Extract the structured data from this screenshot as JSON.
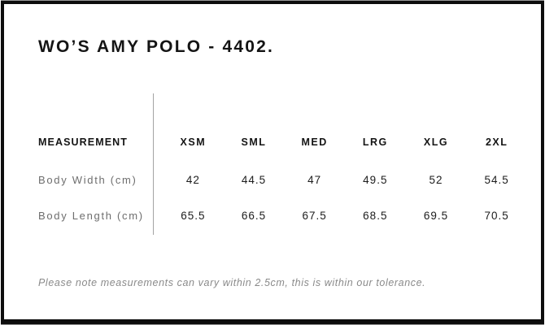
{
  "page": {
    "title": "WO’S AMY POLO - 4402.",
    "footer_note": "Please note measurements can vary within 2.5cm, this is within our tolerance."
  },
  "size_chart": {
    "measurement_header": "MEASUREMENT",
    "sizes": [
      "XSM",
      "SML",
      "MED",
      "LRG",
      "XLG",
      "2XL"
    ],
    "rows": [
      {
        "label": "Body Width (cm)",
        "values": [
          "42",
          "44.5",
          "47",
          "49.5",
          "52",
          "54.5"
        ]
      },
      {
        "label": "Body Length (cm)",
        "values": [
          "65.5",
          "66.5",
          "67.5",
          "68.5",
          "69.5",
          "70.5"
        ]
      }
    ]
  },
  "colors": {
    "frame_border": "#0d0d0d",
    "heading_text": "#141414",
    "row_label_text": "#6e6e6e",
    "note_text": "#8a8a8a",
    "divider_line": "#a3a3a3",
    "background": "#ffffff"
  }
}
